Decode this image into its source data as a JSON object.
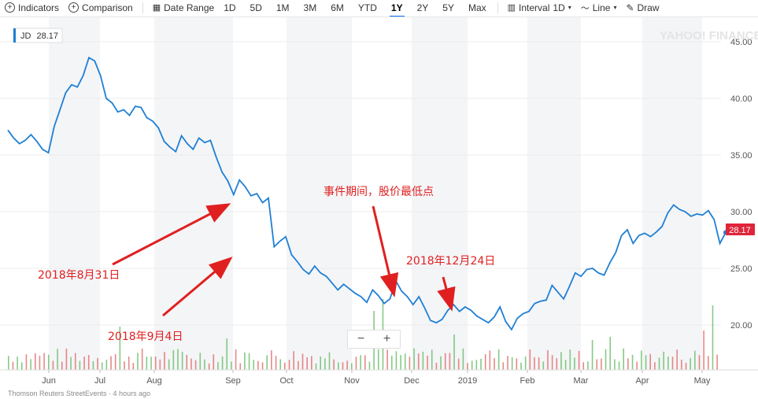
{
  "toolbar": {
    "indicators": "Indicators",
    "comparison": "Comparison",
    "date_range": "Date Range",
    "ranges": [
      "1D",
      "5D",
      "1M",
      "3M",
      "6M",
      "YTD",
      "1Y",
      "2Y",
      "5Y",
      "Max"
    ],
    "active_range": "1Y",
    "interval": "Interval",
    "interval_value": "1D",
    "chart_style": "Line",
    "draw": "Draw"
  },
  "ticker": {
    "symbol": "JD",
    "value": "28.17"
  },
  "watermark": "YAHOO! FINANCE",
  "footer": "Thomson Reuters StreetEvents · 4 hours ago",
  "zoom": {
    "minus": "−",
    "plus": "+"
  },
  "colors": {
    "line": "#1f7fd4",
    "price_tag": "#e0243a",
    "annotation": "#e02020",
    "vol_up": "#5cb85c",
    "vol_down": "#e06060"
  },
  "chart_data": {
    "type": "line",
    "y_ticks": [
      "45.00",
      "40.00",
      "35.00",
      "30.00",
      "25.00",
      "20.00"
    ],
    "ylim": [
      16,
      47
    ],
    "x_tick_labels": [
      "Jun",
      "Jul",
      "Aug",
      "Sep",
      "Oct",
      "Nov",
      "Dec",
      "2019",
      "Feb",
      "Mar",
      "Apr",
      "May"
    ],
    "last_price": "28.17",
    "series": [
      {
        "values": [
          37.2,
          36.5,
          36.0,
          36.3,
          36.8,
          36.2,
          35.5,
          35.2,
          37.5,
          39.0,
          40.5,
          41.2,
          41.0,
          42.0,
          43.6,
          43.3,
          42.0,
          40.0,
          39.6,
          38.8,
          39.0,
          38.5,
          39.3,
          39.2,
          38.3,
          38.0,
          37.4,
          36.2,
          35.7,
          35.3,
          36.7,
          36.0,
          35.5,
          36.5,
          36.1,
          36.3,
          34.8,
          33.5,
          32.7,
          31.5,
          32.8,
          32.2,
          31.4,
          31.6,
          30.8,
          31.2,
          26.9,
          27.4,
          27.8,
          26.2,
          25.6,
          24.9,
          24.5,
          25.2,
          24.6,
          24.3,
          23.7,
          23.1,
          23.6,
          23.2,
          22.8,
          22.5,
          22.0,
          23.1,
          22.6,
          21.9,
          22.3,
          23.9,
          23.0,
          22.5,
          21.8,
          22.5,
          21.5,
          20.4,
          20.2,
          20.5,
          21.3,
          21.8,
          21.2,
          21.6,
          21.3,
          20.8,
          20.5,
          20.2,
          20.7,
          21.6,
          20.3,
          19.6,
          20.6,
          21.0,
          21.2,
          21.9,
          22.1,
          22.2,
          23.5,
          22.9,
          22.3,
          23.4,
          24.6,
          24.3,
          24.9,
          25.0,
          24.6,
          24.4,
          25.5,
          26.4,
          27.9,
          28.4,
          27.2,
          27.9,
          28.1,
          27.8,
          28.2,
          28.7,
          29.9,
          30.6,
          30.2,
          30.0,
          29.6,
          29.8,
          29.7,
          30.1,
          29.3,
          27.2,
          28.17
        ]
      }
    ],
    "volume_bars": 160,
    "annotations": [
      {
        "text": "2018年8月31日",
        "x": "2018-08-31",
        "y": 31.0
      },
      {
        "text": "2018年9月4日",
        "x": "2018-09-04",
        "y": 26.5
      },
      {
        "text": "事件期间，股价最低点",
        "x": "2018-11-20",
        "y": 19.8
      },
      {
        "text": "2018年12月24日",
        "x": "2018-12-24",
        "y": 20.2
      }
    ]
  }
}
